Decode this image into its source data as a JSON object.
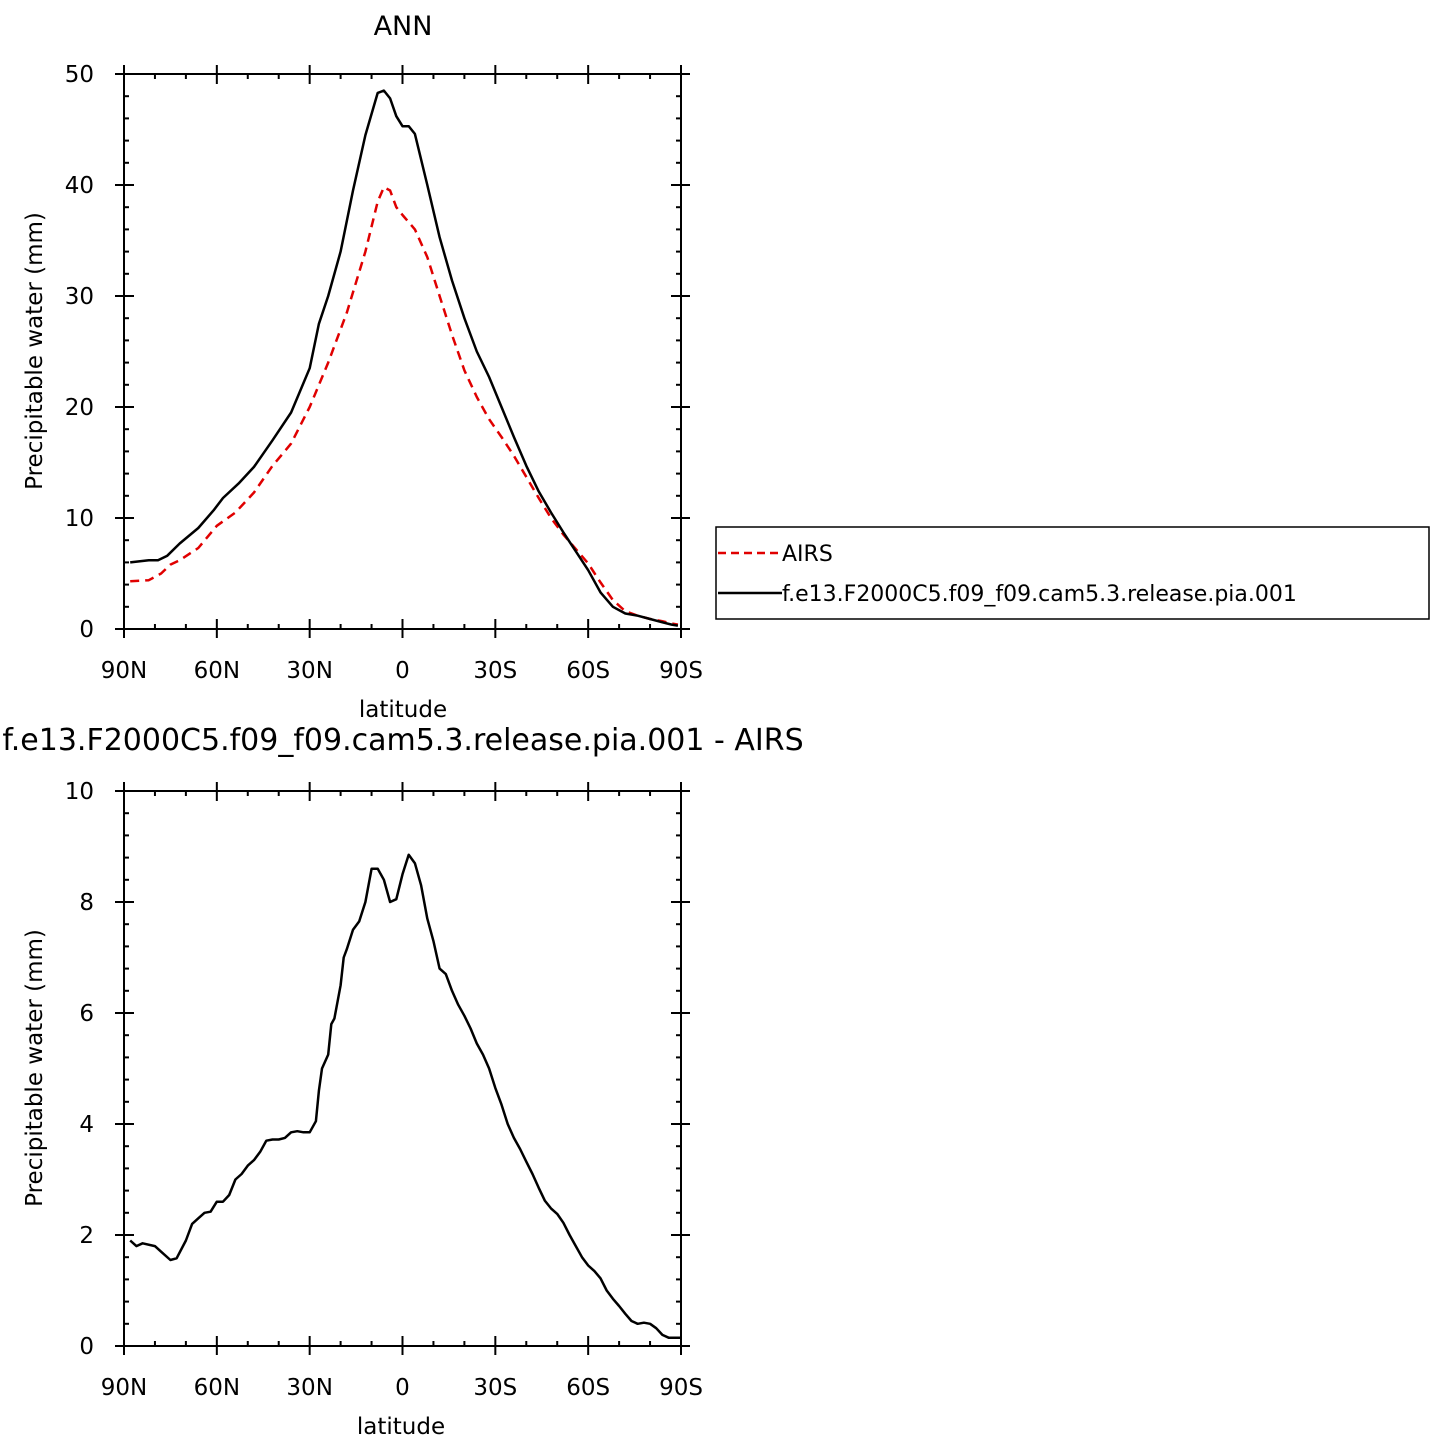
{
  "chart_data": [
    {
      "type": "line",
      "title": "ANN",
      "xlabel": "latitude",
      "ylabel": "Precipitable water (mm)",
      "xlim": [
        -90,
        90
      ],
      "ylim": [
        0,
        50
      ],
      "x_ticks": [
        "90N",
        "60N",
        "30N",
        "0",
        "30S",
        "60S",
        "90S"
      ],
      "y_ticks": [
        "0",
        "10",
        "20",
        "30",
        "40",
        "50"
      ],
      "legend_position": "right",
      "series": [
        {
          "name": "AIRS",
          "color": "#e00000",
          "dash": true,
          "x": [
            -88,
            -82,
            -78,
            -75,
            -72,
            -66,
            -60,
            -54,
            -48,
            -42,
            -36,
            -30,
            -24,
            -18,
            -12,
            -8,
            -6,
            -4,
            -2,
            0,
            4,
            8,
            12,
            16,
            20,
            24,
            28,
            32,
            36,
            40,
            44,
            48,
            52,
            56,
            60,
            64,
            68,
            72,
            76,
            80,
            84,
            87,
            89
          ],
          "y": [
            4.3,
            4.4,
            5.0,
            5.8,
            6.2,
            7.3,
            9.3,
            10.5,
            12.3,
            14.7,
            16.7,
            20.0,
            24.0,
            28.5,
            34.0,
            38.5,
            39.8,
            39.5,
            38.0,
            37.3,
            36.0,
            33.5,
            30.0,
            26.5,
            23.3,
            20.9,
            18.9,
            17.3,
            15.6,
            13.7,
            11.8,
            10.0,
            8.5,
            7.2,
            5.9,
            4.2,
            2.6,
            1.6,
            1.2,
            0.9,
            0.7,
            0.5,
            0.4
          ]
        },
        {
          "name": "f.e13.F2000C5.f09_f09.cam5.3.release.pia.001",
          "color": "#000000",
          "dash": false,
          "x": [
            -88,
            -82,
            -79,
            -76,
            -72,
            -66,
            -61,
            -58,
            -53,
            -48,
            -42,
            -36,
            -30,
            -27,
            -24,
            -20,
            -16,
            -12,
            -8,
            -6,
            -4,
            -2,
            0,
            2,
            4,
            8,
            12,
            16,
            20,
            24,
            28,
            32,
            36,
            40,
            44,
            48,
            52,
            56,
            60,
            64,
            68,
            72,
            76,
            80,
            84,
            87,
            89
          ],
          "y": [
            6.0,
            6.2,
            6.2,
            6.6,
            7.7,
            9.1,
            10.7,
            11.8,
            13.1,
            14.6,
            17.0,
            19.5,
            23.5,
            27.5,
            30.0,
            34.0,
            39.5,
            44.5,
            48.3,
            48.5,
            47.8,
            46.2,
            45.3,
            45.3,
            44.6,
            40.0,
            35.3,
            31.4,
            28.0,
            25.0,
            22.7,
            20.0,
            17.3,
            14.7,
            12.4,
            10.5,
            8.7,
            7.0,
            5.3,
            3.3,
            2.0,
            1.4,
            1.2,
            0.9,
            0.6,
            0.4,
            0.3
          ]
        }
      ]
    },
    {
      "type": "line",
      "title": "f.e13.F2000C5.f09_f09.cam5.3.release.pia.001 - AIRS",
      "xlabel": "latitude",
      "ylabel": "Precipitable water (mm)",
      "xlim": [
        -90,
        90
      ],
      "ylim": [
        0,
        10
      ],
      "x_ticks": [
        "90N",
        "60N",
        "30N",
        "0",
        "30S",
        "60S",
        "90S"
      ],
      "y_ticks": [
        "0",
        "2",
        "4",
        "6",
        "8",
        "10"
      ],
      "series": [
        {
          "color": "#000000",
          "dash": false,
          "x": [
            -88,
            -86,
            -84,
            -80,
            -78,
            -75,
            -73,
            -70,
            -68,
            -66,
            -64,
            -62,
            -60,
            -58,
            -56,
            -54,
            -52,
            -50,
            -48,
            -46,
            -44,
            -42,
            -40,
            -38,
            -36,
            -34,
            -32,
            -30,
            -28,
            -27,
            -26,
            -24,
            -23,
            -22,
            -20,
            -19,
            -18,
            -16,
            -14,
            -12,
            -10,
            -8,
            -6,
            -4,
            -2,
            0,
            2,
            4,
            6,
            8,
            10,
            12,
            14,
            16,
            18,
            20,
            22,
            24,
            26,
            28,
            30,
            32,
            34,
            36,
            38,
            40,
            42,
            44,
            46,
            48,
            50,
            52,
            54,
            56,
            58,
            60,
            62,
            64,
            66,
            68,
            70,
            72,
            74,
            76,
            78,
            80,
            82,
            84,
            86,
            88,
            90
          ],
          "y": [
            1.9,
            1.8,
            1.85,
            1.8,
            1.7,
            1.55,
            1.58,
            1.9,
            2.2,
            2.3,
            2.4,
            2.42,
            2.6,
            2.6,
            2.72,
            3.0,
            3.1,
            3.25,
            3.35,
            3.5,
            3.7,
            3.72,
            3.72,
            3.75,
            3.85,
            3.87,
            3.85,
            3.85,
            4.05,
            4.6,
            5.0,
            5.25,
            5.8,
            5.9,
            6.5,
            7.0,
            7.15,
            7.5,
            7.65,
            8.0,
            8.6,
            8.6,
            8.4,
            8.0,
            8.05,
            8.5,
            8.85,
            8.7,
            8.3,
            7.7,
            7.3,
            6.8,
            6.7,
            6.4,
            6.15,
            5.95,
            5.72,
            5.45,
            5.25,
            5.0,
            4.65,
            4.35,
            4.0,
            3.75,
            3.55,
            3.32,
            3.1,
            2.85,
            2.62,
            2.48,
            2.38,
            2.22,
            2.0,
            1.8,
            1.6,
            1.45,
            1.35,
            1.22,
            1.0,
            0.85,
            0.72,
            0.58,
            0.45,
            0.4,
            0.42,
            0.4,
            0.32,
            0.2,
            0.15,
            0.15,
            0.15
          ]
        }
      ]
    }
  ]
}
